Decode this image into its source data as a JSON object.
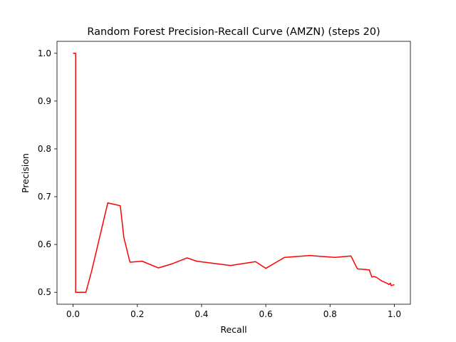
{
  "chart_data": {
    "type": "line",
    "title": "Random Forest Precision-Recall Curve (AMZN) (steps 20)",
    "xlabel": "Recall",
    "ylabel": "Precision",
    "xlim": [
      -0.05,
      1.05
    ],
    "ylim": [
      0.475,
      1.025
    ],
    "xticks": [
      0.0,
      0.2,
      0.4,
      0.6,
      0.8,
      1.0
    ],
    "xtick_labels": [
      "0.0",
      "0.2",
      "0.4",
      "0.6",
      "0.8",
      "1.0"
    ],
    "yticks": [
      0.5,
      0.6,
      0.7,
      0.8,
      0.9,
      1.0
    ],
    "ytick_labels": [
      "0.5",
      "0.6",
      "0.7",
      "0.8",
      "0.9",
      "1.0"
    ],
    "grid": false,
    "series": [
      {
        "color": "#ff0000",
        "x": [
          0.0,
          0.008,
          0.008,
          0.04,
          0.058,
          0.108,
          0.147,
          0.158,
          0.177,
          0.215,
          0.266,
          0.31,
          0.355,
          0.385,
          0.49,
          0.568,
          0.6,
          0.658,
          0.737,
          0.815,
          0.865,
          0.885,
          0.922,
          0.93,
          0.937,
          0.945,
          0.96,
          0.98,
          0.983,
          0.988,
          0.99,
          0.995,
          1.0
        ],
        "y": [
          1.0,
          1.0,
          0.5,
          0.5,
          0.545,
          0.687,
          0.681,
          0.615,
          0.563,
          0.565,
          0.551,
          0.56,
          0.572,
          0.565,
          0.556,
          0.564,
          0.55,
          0.573,
          0.577,
          0.573,
          0.576,
          0.549,
          0.547,
          0.532,
          0.533,
          0.531,
          0.524,
          0.518,
          0.516,
          0.519,
          0.514,
          0.515,
          0.516
        ]
      }
    ]
  }
}
